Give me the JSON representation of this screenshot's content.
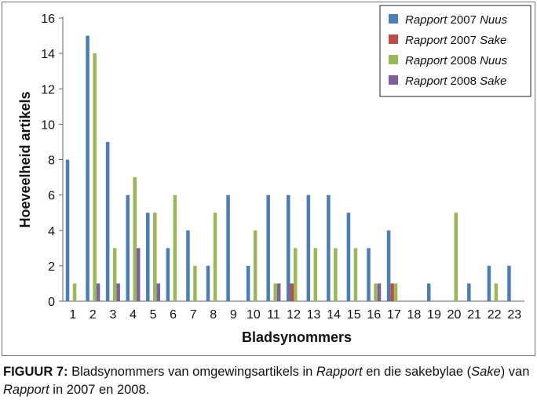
{
  "chart_data": {
    "type": "bar",
    "title": "",
    "xlabel": "Bladsynommers",
    "ylabel": "Hoeveelheid artikels",
    "ylim": [
      0,
      16
    ],
    "yticks": [
      0,
      2,
      4,
      6,
      8,
      10,
      12,
      14,
      16
    ],
    "categories": [
      "1",
      "2",
      "3",
      "4",
      "5",
      "6",
      "7",
      "8",
      "9",
      "10",
      "11",
      "12",
      "13",
      "14",
      "15",
      "16",
      "17",
      "18",
      "19",
      "20",
      "21",
      "22",
      "23"
    ],
    "series": [
      {
        "name_italic": "Rapport",
        "name_year": "2007",
        "name_suffix": "Nuus",
        "color": "#4a7ebb",
        "values": [
          8,
          15,
          9,
          6,
          5,
          3,
          4,
          2,
          6,
          2,
          6,
          6,
          6,
          6,
          5,
          3,
          4,
          0,
          1,
          0,
          1,
          2,
          2
        ]
      },
      {
        "name_italic": "Rapport",
        "name_year": "2007",
        "name_suffix": "Sake",
        "color": "#be4b48",
        "values": [
          0,
          0,
          0,
          0,
          0,
          0,
          0,
          0,
          0,
          0,
          0,
          1,
          0,
          0,
          0,
          0,
          1,
          0,
          0,
          0,
          0,
          0,
          0
        ]
      },
      {
        "name_italic": "Rapport",
        "name_year": "2008",
        "name_suffix": "Nuus",
        "color": "#98b954",
        "values": [
          1,
          14,
          3,
          7,
          5,
          6,
          2,
          5,
          0,
          4,
          1,
          3,
          3,
          3,
          3,
          1,
          1,
          0,
          0,
          5,
          0,
          1,
          0
        ]
      },
      {
        "name_italic": "Rapport",
        "name_year": "2008",
        "name_suffix": "Sake",
        "color": "#7d60a0",
        "values": [
          0,
          1,
          1,
          3,
          1,
          0,
          0,
          0,
          0,
          0,
          1,
          0,
          0,
          0,
          0,
          1,
          0,
          0,
          0,
          0,
          0,
          0,
          0
        ]
      }
    ],
    "legend_position": "top-right",
    "grid": false
  },
  "caption": {
    "label": "FIGUUR 7:",
    "part1": " Bladsynommers van omgewingsartikels in ",
    "italic1": "Rapport",
    "part2": " en die sakebylae (",
    "italic2": "Sake",
    "part3": ") van ",
    "italic3": "Rapport",
    "part4": " in 2007 en 2008."
  }
}
